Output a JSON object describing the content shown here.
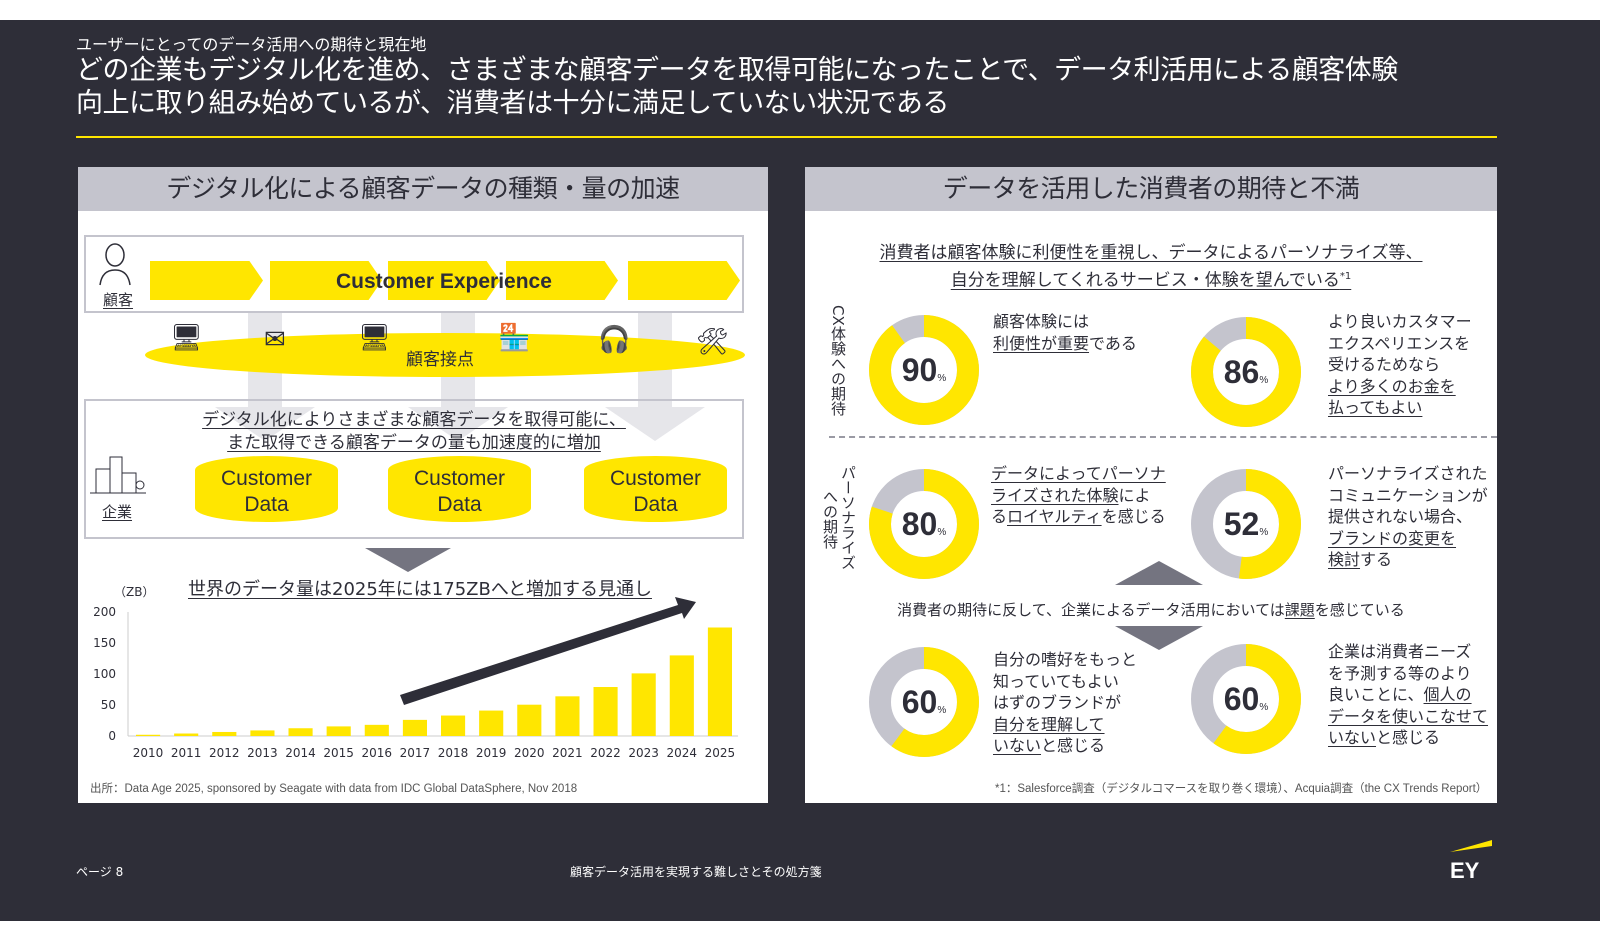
{
  "header": {
    "subtitle": "ユーザーにとってのデータ活用への期待と現在地",
    "title_line1": "どの企業もデジタル化を進め、さまざまな顧客データを取得可能になったことで、データ利活用による顧客体験",
    "title_line2": "向上に取り組み始めているが、消費者は十分に満足していない状況である"
  },
  "left": {
    "heading": "デジタル化による顧客データの種類・量の加速",
    "customer_label": "顧客",
    "cx_label": "Customer Experience",
    "touchpoint_label": "顧客接点",
    "touchpoint_icons": [
      "ad-monitor-icon",
      "email-icon",
      "online-shop-icon",
      "shop-icon",
      "headset-icon",
      "tools-icon"
    ],
    "enterprise_label": "企業",
    "digital_line1": "デジタル化によりさまざまな顧客データを取得可能に、",
    "digital_line2": "また取得できる顧客データの量も加速度的に増加",
    "cylinders": [
      {
        "l1": "Customer",
        "l2": "Data"
      },
      {
        "l1": "Customer",
        "l2": "Data"
      },
      {
        "l1": "Customer",
        "l2": "Data"
      }
    ],
    "source": "出所：Data Age 2025, sponsored by Seagate with data from IDC Global DataSphere, Nov 2018"
  },
  "chart_data": {
    "type": "bar",
    "title": "世界のデータ量は2025年には175ZBへと増加する見通し",
    "ylabel": "（ZB）",
    "xlabel": "",
    "categories": [
      "2010",
      "2011",
      "2012",
      "2013",
      "2014",
      "2015",
      "2016",
      "2017",
      "2018",
      "2019",
      "2020",
      "2021",
      "2022",
      "2023",
      "2024",
      "2025"
    ],
    "values": [
      2,
      4,
      6.5,
      9,
      12.5,
      15.5,
      18,
      26,
      33,
      41,
      50.5,
      64,
      79,
      101,
      130,
      175
    ],
    "ylim": [
      0,
      200
    ],
    "yticks": [
      "0",
      "50",
      "100",
      "150",
      "200"
    ],
    "grid": false,
    "color": "#ffe600"
  },
  "right": {
    "heading": "データを活用した消費者の期待と不満",
    "lead_line1": "消費者は顧客体験に利便性を重視し、データによるパーソナライズ等、",
    "lead_line2": "自分を理解してくれるサービス・体験を望んでいる",
    "lead_sup": "*1",
    "vlabel_cx": "CX体験への期待",
    "vlabel_p1": "パーソナライズ",
    "vlabel_p2": "への期待",
    "middle_pre": "消費者の期待に反して、企業によるデータ活用においては",
    "middle_u": "課題",
    "middle_post": "を感じている",
    "donuts": [
      {
        "value": 90,
        "pct": "90",
        "sym": "%",
        "lines": [
          [
            [
              "顧客体験には",
              0
            ]
          ],
          [
            [
              "利便性が重要",
              1
            ],
            [
              "である",
              0
            ]
          ]
        ]
      },
      {
        "value": 86,
        "pct": "86",
        "sym": "%",
        "lines": [
          [
            [
              "より良いカスタマー",
              0
            ]
          ],
          [
            [
              "エクスペリエンスを",
              0
            ]
          ],
          [
            [
              "受けるためなら",
              0
            ]
          ],
          [
            [
              "より多くのお金を",
              1
            ]
          ],
          [
            [
              "払ってもよい",
              1
            ]
          ]
        ]
      },
      {
        "value": 80,
        "pct": "80",
        "sym": "%",
        "lines": [
          [
            [
              "データによってパーソナ",
              1
            ]
          ],
          [
            [
              "ライズされた体験",
              1
            ],
            [
              "によ",
              0
            ]
          ],
          [
            [
              "る",
              0
            ],
            [
              "ロイヤルティ",
              1
            ],
            [
              "を感じる",
              0
            ]
          ]
        ]
      },
      {
        "value": 52,
        "pct": "52",
        "sym": "%",
        "lines": [
          [
            [
              "パーソナライズされた",
              0
            ]
          ],
          [
            [
              "コミュニケーションが",
              0
            ]
          ],
          [
            [
              "提供されない場合、",
              0
            ]
          ],
          [
            [
              "ブランドの変更を",
              1
            ]
          ],
          [
            [
              "検討",
              1
            ],
            [
              "する",
              0
            ]
          ]
        ]
      },
      {
        "value": 60,
        "pct": "60",
        "sym": "%",
        "lines": [
          [
            [
              "自分の嗜好をもっと",
              0
            ]
          ],
          [
            [
              "知っていてもよい",
              0
            ]
          ],
          [
            [
              "はずのブランドが",
              0
            ]
          ],
          [
            [
              "自分を理解して",
              1
            ]
          ],
          [
            [
              "いない",
              1
            ],
            [
              "と感じる",
              0
            ]
          ]
        ]
      },
      {
        "value": 60,
        "pct": "60",
        "sym": "%",
        "lines": [
          [
            [
              "企業は消費者ニーズ",
              0
            ]
          ],
          [
            [
              "を予測する等のより",
              0
            ]
          ],
          [
            [
              "良いことに、",
              0
            ],
            [
              "個人の",
              1
            ]
          ],
          [
            [
              "データを使いこなせて",
              1
            ]
          ],
          [
            [
              "いない",
              1
            ],
            [
              "と感じる",
              0
            ]
          ]
        ]
      }
    ],
    "footnote": "*1：Salesforce調査（デジタルコマースを取り巻く環境）、Acquia調査（the CX Trends Report）"
  },
  "footer": {
    "page": "ページ 8",
    "center": "顧客データ活用を実現する難しさとその処方箋",
    "logo": "EY"
  },
  "colors": {
    "bg": "#2e2e38",
    "yellow": "#ffe600",
    "gray": "#c4c4cd"
  }
}
